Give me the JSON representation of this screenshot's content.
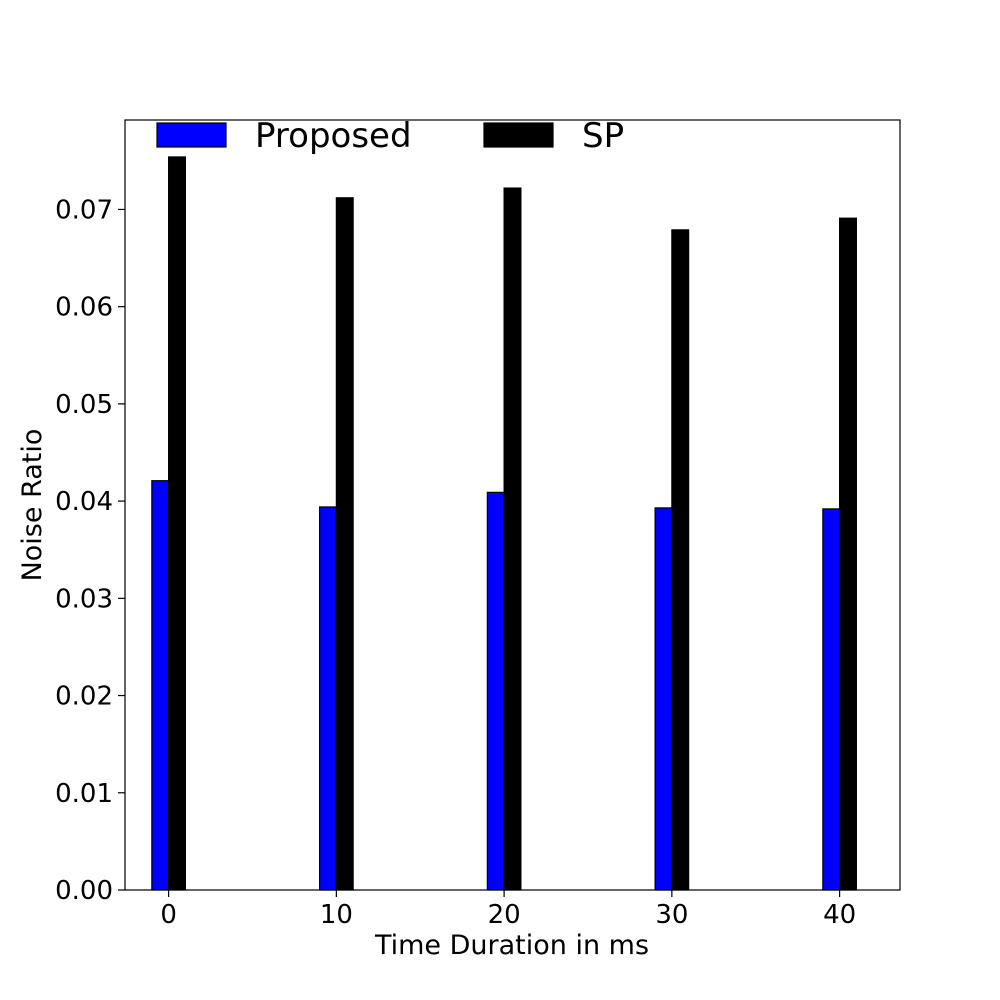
{
  "chart_data": {
    "type": "bar",
    "title": "",
    "xlabel": "Time Duration in ms",
    "ylabel": "Noise Ratio",
    "categories": [
      "0",
      "10",
      "20",
      "30",
      "40"
    ],
    "x": [
      0,
      10,
      20,
      30,
      40
    ],
    "series": [
      {
        "name": "Proposed",
        "color": "#0000ff",
        "values": [
          0.0421,
          0.0394,
          0.0409,
          0.0393,
          0.0392
        ]
      },
      {
        "name": "SP",
        "color": "#000000",
        "values": [
          0.0754,
          0.0712,
          0.0722,
          0.0679,
          0.0691
        ]
      }
    ],
    "yticks": [
      "0.00",
      "0.01",
      "0.02",
      "0.03",
      "0.04",
      "0.05",
      "0.06",
      "0.07"
    ],
    "ylim": [
      0,
      0.0792
    ],
    "xlim": [
      -2.6,
      43.6
    ],
    "grid": false,
    "legend": {
      "placement": "top",
      "columns": 2
    }
  }
}
